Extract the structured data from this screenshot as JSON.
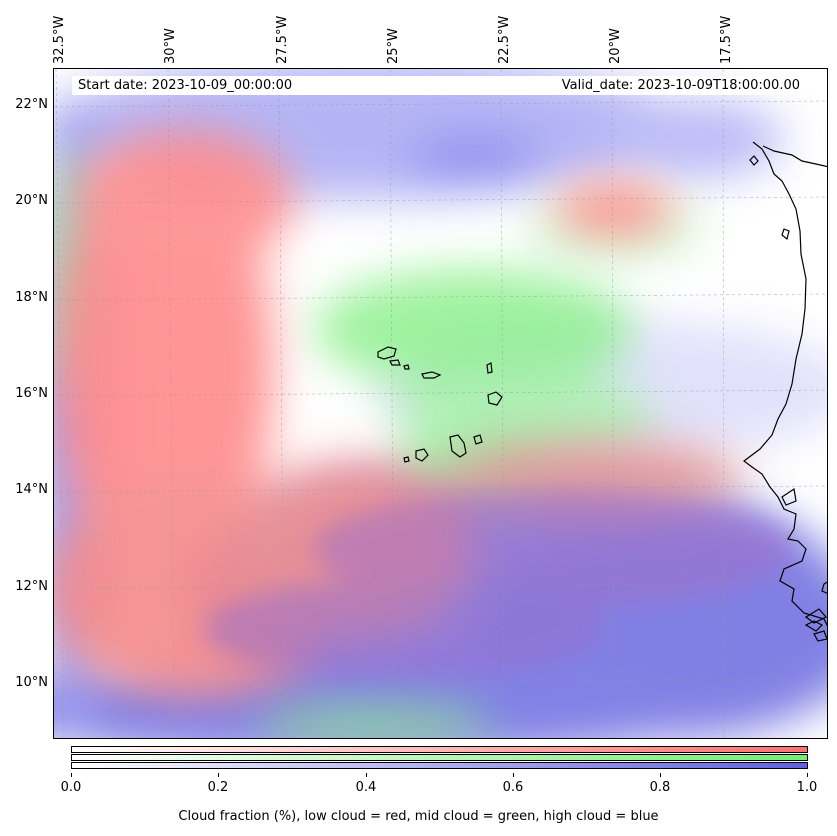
{
  "map": {
    "start_date": "Start date: 2023-10-09_00:00:00",
    "valid_date": "Valid_date: 2023-10-09T18:00:00.00",
    "longitude_labels": [
      "32.5°W",
      "30°W",
      "27.5°W",
      "25°W",
      "22.5°W",
      "20°W",
      "17.5°W"
    ],
    "latitude_labels": [
      "22°N",
      "20°N",
      "18°N",
      "16°N",
      "14°N",
      "12°N",
      "10°N"
    ],
    "layers": [
      "low cloud",
      "mid cloud",
      "high cloud",
      "coastline",
      "gridlines"
    ],
    "colors": {
      "low_cloud": "#ff7070",
      "mid_cloud": "#80f080",
      "high_cloud": "#6a6ae6",
      "coastline": "#000000"
    }
  },
  "colorbar": {
    "tick_labels": [
      "0.0",
      "0.2",
      "0.4",
      "0.6",
      "0.8",
      "1.0"
    ],
    "title": "Cloud fraction (%), low cloud = red, mid cloud = green, high cloud = blue",
    "min": 0.0,
    "max": 1.0
  }
}
